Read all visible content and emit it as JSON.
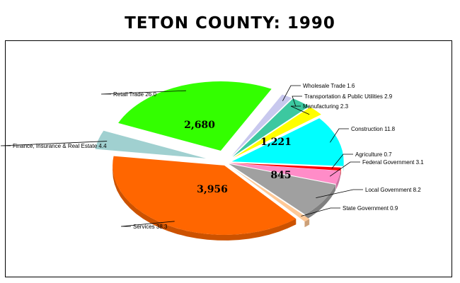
{
  "chart_data": {
    "type": "pie",
    "title": "TETON COUNTY:  1990",
    "slices": [
      {
        "label": "Wholesale Trade 1.6",
        "share": 1.6,
        "color": "#c8c8ee"
      },
      {
        "label": "Transportation & Public Utilities 2.9",
        "share": 2.9,
        "color": "#3cc8a0"
      },
      {
        "label": "Manufacturing 2.3",
        "share": 2.3,
        "color": "#ffff00"
      },
      {
        "label": "Construction 11.8",
        "share": 11.8,
        "color": "#00ffff",
        "value_label": "1,221"
      },
      {
        "label": "Agriculture 0.7",
        "share": 0.7,
        "color": "#ff0000"
      },
      {
        "label": "Federal Government 3.1",
        "share": 3.1,
        "color": "#ff8cc8"
      },
      {
        "label": "Local Government 8.2",
        "share": 8.2,
        "color": "#a0a0a0",
        "value_label": "845"
      },
      {
        "label": "State Government 0.9",
        "share": 0.9,
        "color": "#ffc896"
      },
      {
        "label": "Services 38.3",
        "share": 38.3,
        "color": "#ff6600",
        "value_label": "3,956"
      },
      {
        "label": "Finance, Insurance & Real Estate 4.4",
        "share": 4.4,
        "color": "#a0d0d0"
      },
      {
        "label": "Retail Trade 26.0",
        "share": 26.0,
        "color": "#33ff00",
        "value_label": "2,680"
      }
    ]
  }
}
